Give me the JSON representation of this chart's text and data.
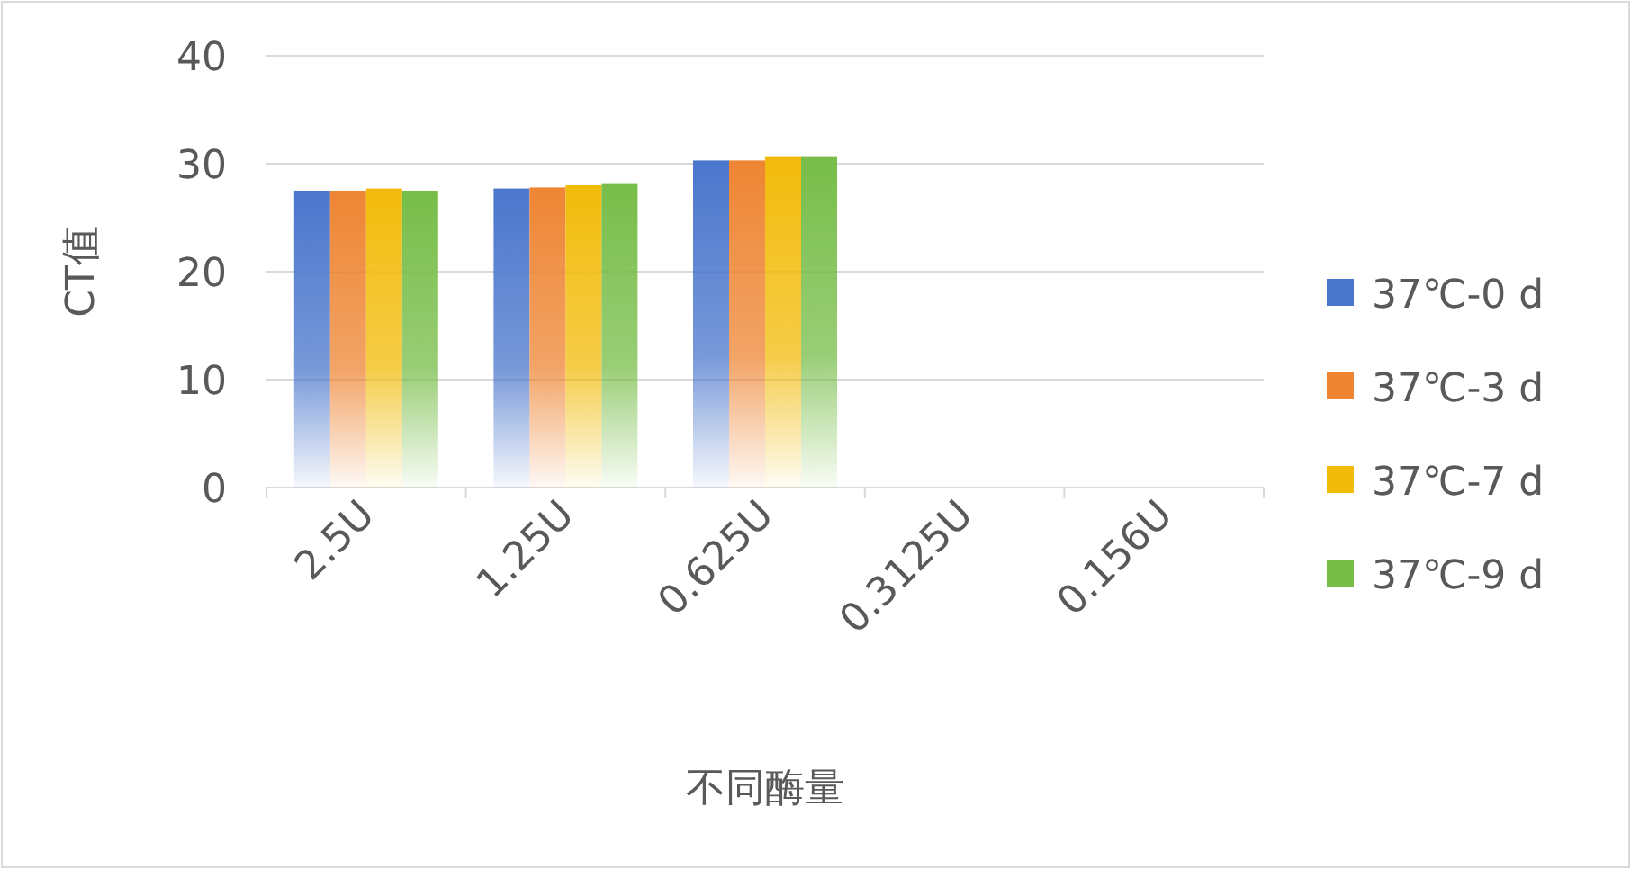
{
  "chart_data": {
    "type": "bar",
    "xlabel": "不同酶量",
    "ylabel": "CT值",
    "categories": [
      "2.5U",
      "1.25U",
      "0.625U",
      "0.3125U",
      "0.156U"
    ],
    "series": [
      {
        "name": "37℃-0 d",
        "color": "#4a76cc",
        "values": [
          27.5,
          27.7,
          30.3,
          null,
          null
        ]
      },
      {
        "name": "37℃-3 d",
        "color": "#ee8533",
        "values": [
          27.5,
          27.8,
          30.3,
          null,
          null
        ]
      },
      {
        "name": "37℃-7 d",
        "color": "#f2bb0a",
        "values": [
          27.7,
          28.0,
          30.7,
          null,
          null
        ]
      },
      {
        "name": "37℃-9 d",
        "color": "#77bd48",
        "values": [
          27.5,
          28.2,
          30.7,
          null,
          null
        ]
      }
    ],
    "ylim": [
      0,
      40
    ],
    "yticks": [
      0,
      10,
      20,
      30,
      40
    ],
    "grid": "y",
    "legend": "right"
  }
}
